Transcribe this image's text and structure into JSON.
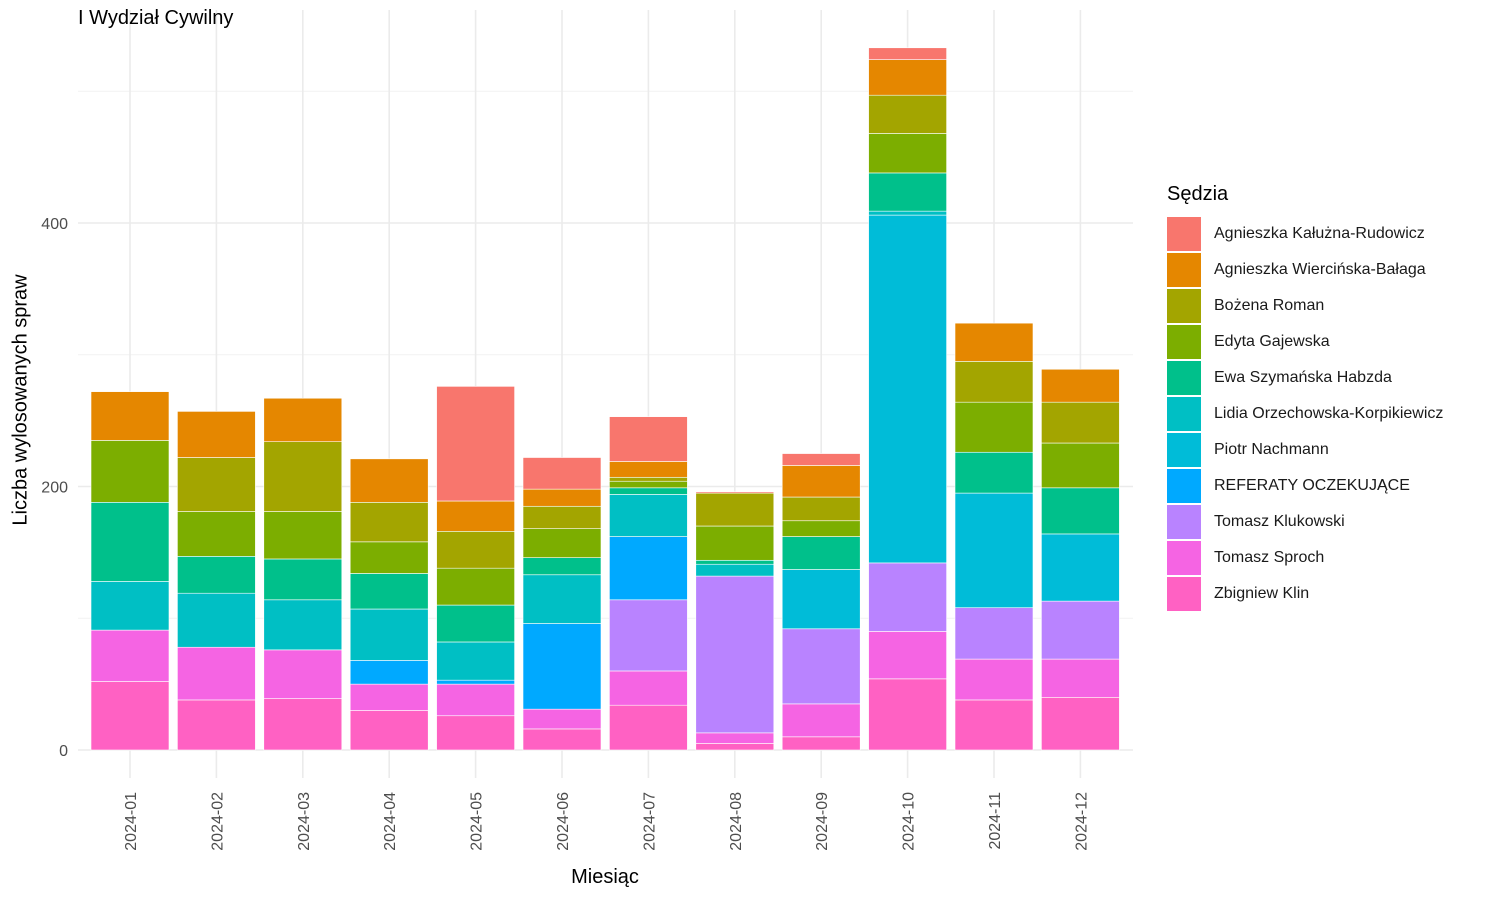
{
  "chart_data": {
    "type": "bar",
    "stacked": true,
    "title": "I Wydział Cywilny",
    "xlabel": "Miesiąc",
    "ylabel": "Liczba wylosowanych spraw",
    "ylim": [
      -20,
      560
    ],
    "yticks": [
      0,
      200,
      400
    ],
    "grid": true,
    "legend_title": "Sędzia",
    "legend_position": "right",
    "categories": [
      "2024-01",
      "2024-02",
      "2024-03",
      "2024-04",
      "2024-05",
      "2024-06",
      "2024-07",
      "2024-08",
      "2024-09",
      "2024-10",
      "2024-11",
      "2024-12"
    ],
    "series": [
      {
        "name": "Zbigniew Klin",
        "color": "#FF61C3",
        "values": [
          52,
          38,
          39,
          30,
          26,
          16,
          34,
          5,
          10,
          54,
          38,
          40
        ]
      },
      {
        "name": "Tomasz Sproch",
        "color": "#F564E3",
        "values": [
          39,
          40,
          37,
          20,
          24,
          15,
          26,
          8,
          25,
          36,
          31,
          29
        ]
      },
      {
        "name": "Tomasz Klukowski",
        "color": "#B983FF",
        "values": [
          0,
          0,
          0,
          0,
          0,
          0,
          54,
          119,
          57,
          52,
          39,
          44
        ]
      },
      {
        "name": "REFERATY OCZEKUJĄCE",
        "color": "#00A9FF",
        "values": [
          0,
          0,
          0,
          18,
          3,
          65,
          48,
          0,
          0,
          0,
          0,
          0
        ]
      },
      {
        "name": "Piotr Nachmann",
        "color": "#00BCD8",
        "values": [
          0,
          0,
          0,
          0,
          0,
          0,
          0,
          0,
          45,
          264,
          87,
          51
        ]
      },
      {
        "name": "Lidia Orzechowska-Korpikiewicz",
        "color": "#00BFC4",
        "values": [
          37,
          41,
          38,
          39,
          29,
          37,
          32,
          9,
          0,
          3,
          0,
          0
        ]
      },
      {
        "name": "Ewa Szymańska Habzda",
        "color": "#00C08B",
        "values": [
          60,
          28,
          31,
          27,
          28,
          13,
          5,
          3,
          25,
          29,
          31,
          35
        ]
      },
      {
        "name": "Edyta Gajewska",
        "color": "#7CAE00",
        "values": [
          47,
          34,
          36,
          24,
          28,
          22,
          5,
          26,
          12,
          30,
          38,
          34
        ]
      },
      {
        "name": "Bożena Roman",
        "color": "#A3A500",
        "values": [
          0,
          41,
          53,
          30,
          28,
          17,
          3,
          25,
          18,
          29,
          31,
          31
        ]
      },
      {
        "name": "Agnieszka Wiercińska-Bałaga",
        "color": "#E58700",
        "values": [
          37,
          35,
          33,
          33,
          23,
          13,
          12,
          0,
          24,
          27,
          29,
          25
        ]
      },
      {
        "name": "Agnieszka Kałużna-Rudowicz",
        "color": "#F8766D",
        "values": [
          0,
          0,
          0,
          0,
          87,
          24,
          34,
          1,
          9,
          9,
          0,
          0
        ]
      }
    ]
  }
}
